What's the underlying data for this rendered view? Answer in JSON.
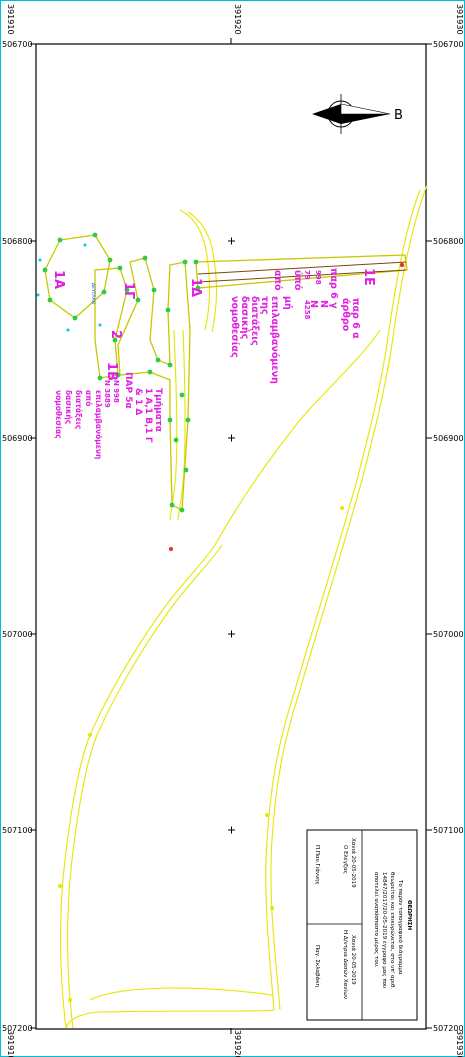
{
  "sheet": {
    "coords": {
      "left_top": "506700",
      "left_800": "506800",
      "left_900": "506900",
      "left_1000": "507000",
      "left_1100": "507100",
      "left_bottom": "507200",
      "right_top": "506700",
      "right_800": "506800",
      "right_900": "506900",
      "right_1000": "507000",
      "right_1100": "507100",
      "right_bottom": "507200",
      "top_left": "391910",
      "top_mid": "391920",
      "top_right": "391930",
      "bottom_left": "391910",
      "bottom_mid": "391920",
      "bottom_right": "391930"
    },
    "north_label": "B",
    "parcels": {
      "label_1E": "1E",
      "label_1D": "1Δ",
      "label_1G": "1Γ",
      "label_1A": "1Α",
      "label_1B": "1Β",
      "label_2": "2"
    },
    "annotations": {
      "par_6a": "παρ 6 α",
      "arthro": "άρθρο",
      "par_6g": "παρ 6 γ",
      "n": "Ν",
      "n2": "Ν",
      "n998": "998",
      "n79": "79",
      "n4258": "4258",
      "ypo": "ύπό",
      "mi": "μή",
      "apo": "από",
      "epilamvanomeni": "επιλαμβανόμενη",
      "tis": "της",
      "diataxeis": "διατάξεις",
      "dasikis": "δασικής",
      "nomothesias": "νομοθεσίας",
      "tmimata": "Τμήματα",
      "tmimata_ids": "1 Α,1 Β,1 Γ",
      "kai_1d": "& 1 Δ",
      "par_5a": "ΠΑΡ 5α",
      "n998b": "Ν 998",
      "n3889": "N 3889",
      "epilamv2": "επιλαμβανόμενη",
      "apo2": "από",
      "diataxeis2": "διατάξεις",
      "dasikis2": "δασικής",
      "nomothesias2": "νομοθεσίας",
      "small_label": "ΔΕΥΤΛΑΝ"
    },
    "title_block": {
      "heading": "ΘΕΩΡΗΣΗ",
      "line1": "Το παρόν τοπογραφικό διάγραμμα",
      "line2": "θεωρείται και επικυρώνεται, στο υπ' αριθ.",
      "line3": "14847/2017/20-05-2019 έγγραφο μας που",
      "line4": "αποτελεί αναπόσπαστο μέρος του.",
      "left_date": "Χανιά 20-05-2019",
      "left_role": "Ο Ελέγξας",
      "left_name": "Π.Παν.Γιάννης",
      "right_date": "Χανιά 20-05-2019",
      "right_role": "Η Δ/ντρια Δασών Χανίων",
      "right_name": "Παγ. Σκλαβάκη"
    }
  }
}
